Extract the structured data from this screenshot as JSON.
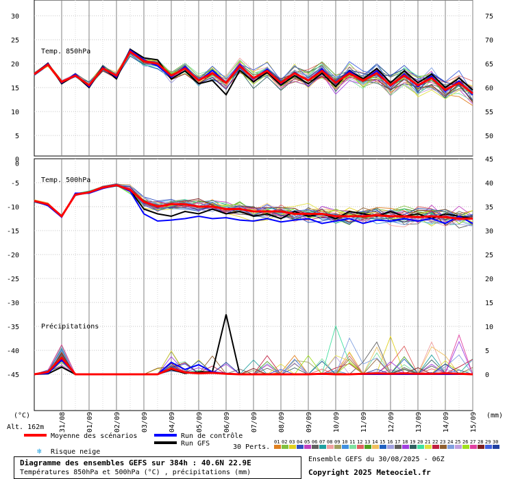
{
  "chart_data": {
    "type": "line",
    "panels": [
      {
        "label": "Temp. 850hPa",
        "left_ticks": [
          "30",
          "25",
          "20",
          "15",
          "10",
          "5"
        ],
        "right_ticks": [
          "75",
          "70",
          "65",
          "60",
          "55",
          "50"
        ]
      },
      {
        "label": "Temp. 500hPa",
        "left_ticks": [
          "0",
          "-5",
          "-10",
          "-15",
          "-20",
          "-25",
          "-30"
        ],
        "right_ticks": [
          "45",
          "40",
          "35",
          "30",
          "25"
        ]
      },
      {
        "label": "Précipitations",
        "left_ticks": [
          "-35",
          "-40",
          "-45"
        ],
        "right_ticks": [
          "20",
          "15",
          "10",
          "5",
          "0"
        ]
      }
    ],
    "x_tick_labels": [
      "31/08",
      "01/09",
      "02/09",
      "03/09",
      "04/09",
      "05/09",
      "06/09",
      "07/09",
      "08/09",
      "09/09",
      "10/09",
      "11/09",
      "12/09",
      "13/09",
      "14/09",
      "15/09"
    ],
    "left_unit": "(°C)",
    "right_unit": "(mm)",
    "altitude": "Alt. 162m",
    "t850_mean": [
      17.8,
      19.8,
      16.2,
      17.5,
      15.5,
      19.0,
      17.5,
      22.5,
      20.5,
      20.0,
      17.5,
      19.0,
      16.5,
      18.0,
      16.0,
      19.5,
      17.0,
      18.5,
      16.0,
      18.0,
      16.5,
      18.5,
      16.0,
      18.0,
      16.5,
      18.0,
      15.5,
      17.5,
      15.5,
      17.0,
      14.5,
      16.0,
      13.8
    ],
    "t850_control": [
      17.8,
      20.0,
      16.0,
      17.8,
      15.2,
      19.2,
      17.2,
      22.8,
      20.8,
      19.5,
      17.2,
      19.4,
      16.4,
      18.6,
      16.0,
      19.8,
      16.8,
      18.8,
      15.8,
      18.2,
      16.4,
      18.9,
      15.8,
      18.4,
      16.4,
      18.5,
      15.3,
      17.8,
      15.2,
      17.4,
      14.2,
      16.4,
      13.5
    ],
    "t850_gfs": [
      17.8,
      20.1,
      15.8,
      17.6,
      15.0,
      19.3,
      16.8,
      23.0,
      21.2,
      20.8,
      16.8,
      18.5,
      15.8,
      16.5,
      13.5,
      18.6,
      16.2,
      18.2,
      15.5,
      17.5,
      15.8,
      18.0,
      15.2,
      18.5,
      16.8,
      19.0,
      16.0,
      18.5,
      16.0,
      17.8,
      15.0,
      17.0,
      14.5
    ],
    "t500_mean": [
      -8.8,
      -9.5,
      -12.0,
      -7.5,
      -7.0,
      -6.0,
      -5.5,
      -6.5,
      -9.0,
      -10.0,
      -9.5,
      -9.5,
      -10.0,
      -10.0,
      -10.5,
      -10.5,
      -11.0,
      -11.0,
      -11.0,
      -11.5,
      -11.5,
      -11.5,
      -12.0,
      -12.0,
      -12.0,
      -11.8,
      -12.0,
      -12.0,
      -12.2,
      -12.0,
      -12.2,
      -12.5,
      -12.5
    ],
    "t500_control": [
      -8.8,
      -9.8,
      -12.2,
      -7.2,
      -7.2,
      -6.2,
      -5.5,
      -6.8,
      -11.5,
      -13.0,
      -12.8,
      -12.5,
      -12.0,
      -12.5,
      -12.3,
      -12.8,
      -13.0,
      -12.5,
      -13.2,
      -12.8,
      -12.5,
      -13.5,
      -13.0,
      -12.5,
      -13.5,
      -12.8,
      -13.0,
      -12.5,
      -13.0,
      -12.5,
      -13.5,
      -12.0,
      -13.5
    ],
    "t500_gfs": [
      -8.8,
      -9.6,
      -12.1,
      -7.3,
      -7.0,
      -6.1,
      -5.6,
      -6.6,
      -10.5,
      -11.5,
      -12.0,
      -11.0,
      -11.5,
      -10.5,
      -11.5,
      -11.0,
      -12.0,
      -11.5,
      -12.5,
      -11.0,
      -12.0,
      -11.5,
      -12.5,
      -11.0,
      -11.5,
      -12.0,
      -11.0,
      -12.0,
      -11.5,
      -12.5,
      -11.5,
      -12.0,
      -12.5
    ],
    "precip_mean": [
      0,
      0.5,
      3.5,
      0,
      0,
      0,
      0,
      0,
      0,
      0,
      1.2,
      0.4,
      0.2,
      0.3,
      0.1,
      0,
      0,
      0,
      0,
      0,
      0,
      0.1,
      0,
      0,
      0.1,
      0.2,
      0.1,
      0.2,
      0.1,
      0.1,
      0.2,
      0.1,
      0
    ],
    "precip_control": [
      0,
      0.2,
      3.0,
      0,
      0,
      0,
      0,
      0,
      0,
      0,
      2.5,
      1.0,
      2.0,
      0.5,
      0.2,
      0,
      0,
      0,
      0,
      0,
      0,
      0,
      0,
      0,
      0,
      0,
      0,
      0,
      0,
      0,
      0,
      0,
      0
    ],
    "precip_gfs": [
      0,
      0.1,
      1.5,
      0,
      0,
      0,
      0,
      0,
      0,
      0,
      1.0,
      0.2,
      0.5,
      0.5,
      12.5,
      0,
      0,
      0,
      0,
      0,
      0,
      0,
      0,
      0,
      0,
      0,
      0,
      0,
      0,
      0,
      0,
      0,
      0
    ],
    "legend": {
      "mean_label": "Moyenne des scénarios",
      "control_label": "Run de contrôle",
      "gfs_label": "Run GFS",
      "snow_label": "Risque neige",
      "perts_label": "30 Perts."
    },
    "pert_ids": [
      "01",
      "02",
      "03",
      "04",
      "05",
      "06",
      "07",
      "08",
      "09",
      "10",
      "11",
      "12",
      "13",
      "14",
      "15",
      "16",
      "17",
      "18",
      "19",
      "20",
      "21",
      "22",
      "23",
      "24",
      "25",
      "26",
      "27",
      "28",
      "29",
      "30"
    ],
    "pert_colors": [
      "#e08020",
      "#80c040",
      "#e0d020",
      "#3050c0",
      "#c040c0",
      "#606060",
      "#20a0a0",
      "#f0a0a0",
      "#a0a060",
      "#4090e0",
      "#80e0a0",
      "#e06060",
      "#50a020",
      "#f0c060",
      "#2060c0",
      "#a0a0e0",
      "#606060",
      "#a040e0",
      "#306060",
      "#40e0a0",
      "#e0e040",
      "#c02040",
      "#906030",
      "#80a0e0",
      "#c0a0e0",
      "#a0e020",
      "#e040a0",
      "#802020",
      "#4060e0",
      "#2040a0"
    ],
    "colors": {
      "mean": "#ff0000",
      "control": "#0000ff",
      "gfs": "#000000"
    }
  },
  "footer": {
    "title": "Diagramme des ensembles GEFS sur 384h : 40.6N 22.9E",
    "subtitle": "Températures 850hPa et 500hPa (°C) , précipitations (mm)",
    "run_info": "Ensemble GEFS du 30/08/2025 - 06Z",
    "copyright": "Copyright 2025 Meteociel.fr"
  }
}
